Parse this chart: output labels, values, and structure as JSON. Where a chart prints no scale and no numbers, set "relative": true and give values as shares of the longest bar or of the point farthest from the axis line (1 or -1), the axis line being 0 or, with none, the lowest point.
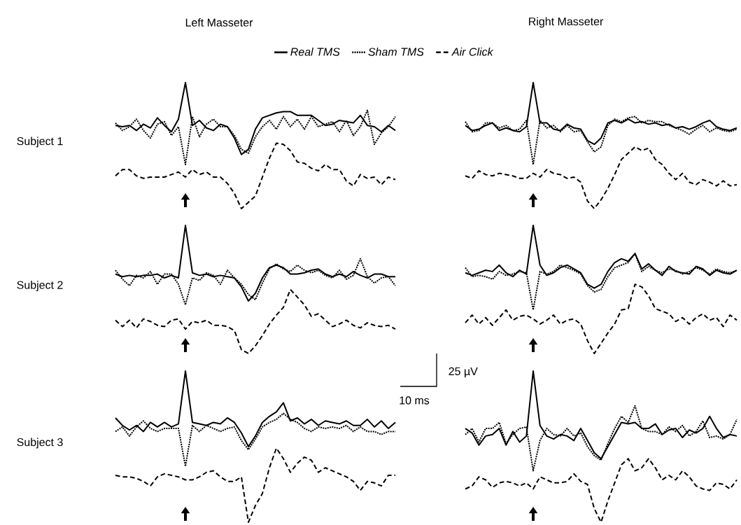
{
  "chart_data": [
    {
      "type": "line",
      "title": "Left Masseter",
      "ylabel": "Subject 1",
      "relative": true,
      "legend": "top",
      "categories": [
        null,
        null,
        null,
        null,
        null,
        null,
        null,
        null,
        null,
        null,
        null,
        null,
        null,
        null,
        null,
        null,
        null,
        null,
        null,
        null,
        null,
        null,
        null,
        null,
        null,
        null,
        null,
        null,
        null,
        null,
        null,
        null,
        null,
        null,
        null,
        null,
        null,
        null,
        null,
        null,
        null
      ],
      "series": [
        {
          "name": "Real TMS",
          "color": "#000000",
          "line_style": "solid",
          "values": [
            0.66,
            0.65,
            0.66,
            0.62,
            0.67,
            0.64,
            0.72,
            0.66,
            0.61,
            0.71,
            1.0,
            0.66,
            0.7,
            0.64,
            0.62,
            0.67,
            0.65,
            0.56,
            0.43,
            0.47,
            0.63,
            0.72,
            0.74,
            0.76,
            0.77,
            0.77,
            0.74,
            0.74,
            0.74,
            0.7,
            0.66,
            0.67,
            0.7,
            0.69,
            0.68,
            0.74,
            0.66,
            0.65,
            0.61,
            0.66,
            0.62
          ]
        },
        {
          "name": "Sham TMS",
          "color": "#000000",
          "line_style": "dotted",
          "values": [
            0.68,
            0.62,
            0.65,
            0.71,
            0.62,
            0.56,
            0.67,
            0.69,
            0.58,
            0.65,
            0.35,
            0.73,
            0.57,
            0.67,
            0.71,
            0.65,
            0.65,
            0.58,
            0.47,
            0.44,
            0.57,
            0.65,
            0.7,
            0.63,
            0.73,
            0.65,
            0.71,
            0.63,
            0.73,
            0.65,
            0.67,
            0.69,
            0.61,
            0.7,
            0.58,
            0.65,
            0.78,
            0.51,
            0.6,
            0.65,
            0.73
          ]
        },
        {
          "name": "Air Click",
          "color": "#000000",
          "line_style": "dashed",
          "values": [
            0.26,
            0.31,
            0.31,
            0.26,
            0.24,
            0.25,
            0.25,
            0.25,
            0.27,
            0.29,
            0.25,
            0.31,
            0.27,
            0.29,
            0.25,
            0.25,
            0.2,
            0.12,
            0.0,
            0.05,
            0.1,
            0.25,
            0.4,
            0.52,
            0.51,
            0.46,
            0.37,
            0.36,
            0.32,
            0.3,
            0.35,
            0.31,
            0.31,
            0.22,
            0.18,
            0.27,
            0.24,
            0.25,
            0.19,
            0.25,
            0.23
          ]
        }
      ]
    },
    {
      "type": "line",
      "title": "Right Masseter",
      "relative": true,
      "categories": [
        null,
        null,
        null,
        null,
        null,
        null,
        null,
        null,
        null,
        null,
        null,
        null,
        null,
        null,
        null,
        null,
        null,
        null,
        null,
        null,
        null,
        null,
        null,
        null,
        null,
        null,
        null,
        null,
        null,
        null,
        null,
        null,
        null,
        null,
        null,
        null,
        null,
        null,
        null,
        null,
        null
      ],
      "series": [
        {
          "color": "#000000",
          "line_style": "solid",
          "values": [
            0.66,
            0.62,
            0.63,
            0.66,
            0.68,
            0.62,
            0.64,
            0.62,
            0.61,
            0.65,
            1.0,
            0.68,
            0.68,
            0.63,
            0.62,
            0.67,
            0.64,
            0.63,
            0.54,
            0.51,
            0.56,
            0.68,
            0.7,
            0.68,
            0.71,
            0.68,
            0.69,
            0.67,
            0.68,
            0.66,
            0.67,
            0.64,
            0.65,
            0.63,
            0.65,
            0.68,
            0.7,
            0.65,
            0.63,
            0.62,
            0.64
          ]
        },
        {
          "color": "#000000",
          "line_style": "dotted",
          "values": [
            0.69,
            0.61,
            0.62,
            0.68,
            0.68,
            0.64,
            0.66,
            0.62,
            0.63,
            0.7,
            0.35,
            0.7,
            0.64,
            0.66,
            0.61,
            0.66,
            0.61,
            0.62,
            0.53,
            0.45,
            0.49,
            0.66,
            0.71,
            0.69,
            0.72,
            0.73,
            0.68,
            0.7,
            0.69,
            0.69,
            0.66,
            0.64,
            0.62,
            0.59,
            0.63,
            0.66,
            0.61,
            0.64,
            0.62,
            0.61,
            0.63
          ]
        },
        {
          "color": "#000000",
          "line_style": "dashed",
          "values": [
            0.26,
            0.24,
            0.3,
            0.27,
            0.26,
            0.28,
            0.27,
            0.26,
            0.24,
            0.24,
            0.28,
            0.25,
            0.31,
            0.28,
            0.27,
            0.24,
            0.25,
            0.21,
            0.06,
            0.0,
            0.07,
            0.16,
            0.27,
            0.39,
            0.44,
            0.49,
            0.46,
            0.48,
            0.39,
            0.35,
            0.28,
            0.23,
            0.28,
            0.21,
            0.19,
            0.23,
            0.21,
            0.18,
            0.22,
            0.18,
            0.19
          ]
        }
      ]
    },
    {
      "type": "line",
      "ylabel": "Subject 2",
      "relative": true,
      "categories": [
        null,
        null,
        null,
        null,
        null,
        null,
        null,
        null,
        null,
        null,
        null,
        null,
        null,
        null,
        null,
        null,
        null,
        null,
        null,
        null,
        null,
        null,
        null,
        null,
        null,
        null,
        null,
        null,
        null,
        null,
        null,
        null,
        null,
        null,
        null,
        null,
        null,
        null,
        null,
        null,
        null
      ],
      "series": [
        {
          "color": "#000000",
          "line_style": "solid",
          "values": [
            0.62,
            0.6,
            0.61,
            0.6,
            0.61,
            0.61,
            0.62,
            0.59,
            0.61,
            0.59,
            1.0,
            0.63,
            0.61,
            0.62,
            0.6,
            0.61,
            0.6,
            0.59,
            0.52,
            0.41,
            0.47,
            0.59,
            0.67,
            0.69,
            0.67,
            0.62,
            0.62,
            0.63,
            0.65,
            0.66,
            0.62,
            0.6,
            0.62,
            0.6,
            0.64,
            0.61,
            0.59,
            0.62,
            0.62,
            0.6,
            0.6
          ]
        },
        {
          "color": "#000000",
          "line_style": "dotted",
          "values": [
            0.65,
            0.58,
            0.53,
            0.61,
            0.59,
            0.64,
            0.54,
            0.62,
            0.62,
            0.54,
            0.38,
            0.59,
            0.57,
            0.63,
            0.61,
            0.54,
            0.65,
            0.59,
            0.54,
            0.46,
            0.42,
            0.55,
            0.66,
            0.7,
            0.66,
            0.64,
            0.69,
            0.65,
            0.63,
            0.65,
            0.61,
            0.59,
            0.65,
            0.58,
            0.61,
            0.74,
            0.6,
            0.55,
            0.59,
            0.6,
            0.53
          ]
        },
        {
          "color": "#000000",
          "line_style": "dashed",
          "values": [
            0.26,
            0.21,
            0.26,
            0.2,
            0.27,
            0.25,
            0.22,
            0.21,
            0.26,
            0.27,
            0.19,
            0.25,
            0.24,
            0.26,
            0.22,
            0.22,
            0.21,
            0.18,
            0.03,
            0.0,
            0.06,
            0.14,
            0.23,
            0.3,
            0.36,
            0.5,
            0.44,
            0.38,
            0.29,
            0.31,
            0.26,
            0.21,
            0.23,
            0.26,
            0.22,
            0.2,
            0.24,
            0.22,
            0.21,
            0.22,
            0.19
          ]
        }
      ]
    },
    {
      "type": "line",
      "relative": true,
      "categories": [
        null,
        null,
        null,
        null,
        null,
        null,
        null,
        null,
        null,
        null,
        null,
        null,
        null,
        null,
        null,
        null,
        null,
        null,
        null,
        null,
        null,
        null,
        null,
        null,
        null,
        null,
        null,
        null,
        null,
        null,
        null,
        null,
        null,
        null,
        null,
        null,
        null,
        null,
        null,
        null,
        null
      ],
      "series": [
        {
          "color": "#000000",
          "line_style": "solid",
          "values": [
            0.63,
            0.61,
            0.63,
            0.65,
            0.64,
            0.69,
            0.63,
            0.6,
            0.65,
            0.62,
            1.0,
            0.69,
            0.61,
            0.63,
            0.67,
            0.69,
            0.66,
            0.63,
            0.54,
            0.51,
            0.54,
            0.64,
            0.71,
            0.74,
            0.72,
            0.78,
            0.66,
            0.7,
            0.65,
            0.61,
            0.68,
            0.64,
            0.63,
            0.62,
            0.68,
            0.66,
            0.61,
            0.65,
            0.63,
            0.62,
            0.65
          ]
        },
        {
          "color": "#000000",
          "line_style": "dotted",
          "values": [
            0.67,
            0.6,
            0.61,
            0.6,
            0.58,
            0.64,
            0.61,
            0.62,
            0.64,
            0.63,
            0.34,
            0.64,
            0.62,
            0.64,
            0.69,
            0.67,
            0.65,
            0.62,
            0.53,
            0.48,
            0.5,
            0.6,
            0.67,
            0.69,
            0.71,
            0.78,
            0.64,
            0.68,
            0.65,
            0.63,
            0.66,
            0.65,
            0.62,
            0.64,
            0.67,
            0.65,
            0.62,
            0.66,
            0.64,
            0.63,
            0.65
          ]
        },
        {
          "color": "#000000",
          "line_style": "dashed",
          "values": [
            0.24,
            0.3,
            0.23,
            0.28,
            0.22,
            0.28,
            0.34,
            0.26,
            0.29,
            0.3,
            0.27,
            0.23,
            0.26,
            0.3,
            0.23,
            0.26,
            0.27,
            0.23,
            0.1,
            0.0,
            0.08,
            0.16,
            0.23,
            0.34,
            0.35,
            0.54,
            0.52,
            0.45,
            0.35,
            0.33,
            0.31,
            0.25,
            0.28,
            0.23,
            0.28,
            0.31,
            0.26,
            0.28,
            0.21,
            0.3,
            0.26
          ]
        }
      ]
    },
    {
      "type": "line",
      "ylabel": "Subject 3",
      "relative": true,
      "annotations": [
        "25 µV",
        "10 ms"
      ],
      "categories": [
        null,
        null,
        null,
        null,
        null,
        null,
        null,
        null,
        null,
        null,
        null,
        null,
        null,
        null,
        null,
        null,
        null,
        null,
        null,
        null,
        null,
        null,
        null,
        null,
        null,
        null,
        null,
        null,
        null,
        null,
        null,
        null,
        null,
        null,
        null,
        null,
        null,
        null,
        null,
        null,
        null
      ],
      "series": [
        {
          "color": "#000000",
          "line_style": "solid",
          "values": [
            0.69,
            0.64,
            0.61,
            0.64,
            0.6,
            0.66,
            0.63,
            0.66,
            0.63,
            0.65,
            1.0,
            0.66,
            0.65,
            0.64,
            0.66,
            0.65,
            0.69,
            0.66,
            0.59,
            0.5,
            0.57,
            0.66,
            0.7,
            0.73,
            0.79,
            0.67,
            0.69,
            0.65,
            0.68,
            0.64,
            0.67,
            0.66,
            0.65,
            0.67,
            0.64,
            0.64,
            0.68,
            0.63,
            0.67,
            0.62,
            0.66
          ]
        },
        {
          "color": "#000000",
          "line_style": "dotted",
          "values": [
            0.6,
            0.63,
            0.57,
            0.63,
            0.67,
            0.62,
            0.6,
            0.62,
            0.62,
            0.62,
            0.37,
            0.64,
            0.6,
            0.64,
            0.62,
            0.6,
            0.62,
            0.63,
            0.54,
            0.48,
            0.55,
            0.63,
            0.66,
            0.68,
            0.72,
            0.68,
            0.66,
            0.62,
            0.6,
            0.63,
            0.62,
            0.63,
            0.62,
            0.64,
            0.6,
            0.63,
            0.6,
            0.6,
            0.58,
            0.6,
            0.6
          ]
        },
        {
          "color": "#000000",
          "line_style": "dashed",
          "values": [
            0.31,
            0.3,
            0.3,
            0.29,
            0.27,
            0.24,
            0.3,
            0.32,
            0.31,
            0.3,
            0.28,
            0.28,
            0.3,
            0.33,
            0.34,
            0.3,
            0.27,
            0.27,
            0.3,
            0.0,
            0.11,
            0.19,
            0.36,
            0.49,
            0.42,
            0.33,
            0.39,
            0.43,
            0.41,
            0.33,
            0.36,
            0.34,
            0.32,
            0.3,
            0.27,
            0.21,
            0.27,
            0.26,
            0.24,
            0.31,
            0.31
          ]
        }
      ]
    },
    {
      "type": "line",
      "relative": true,
      "categories": [
        null,
        null,
        null,
        null,
        null,
        null,
        null,
        null,
        null,
        null,
        null,
        null,
        null,
        null,
        null,
        null,
        null,
        null,
        null,
        null,
        null,
        null,
        null,
        null,
        null,
        null,
        null,
        null,
        null,
        null,
        null,
        null,
        null,
        null,
        null,
        null,
        null,
        null,
        null,
        null,
        null
      ],
      "series": [
        {
          "color": "#000000",
          "line_style": "solid",
          "values": [
            0.62,
            0.59,
            0.51,
            0.57,
            0.58,
            0.62,
            0.51,
            0.6,
            0.53,
            0.57,
            1.0,
            0.64,
            0.57,
            0.55,
            0.58,
            0.57,
            0.54,
            0.62,
            0.54,
            0.46,
            0.42,
            0.5,
            0.58,
            0.66,
            0.65,
            0.66,
            0.62,
            0.62,
            0.65,
            0.58,
            0.61,
            0.62,
            0.56,
            0.61,
            0.59,
            0.62,
            0.7,
            0.62,
            0.56,
            0.58,
            0.57
          ]
        },
        {
          "color": "#000000",
          "line_style": "dotted",
          "values": [
            0.58,
            0.62,
            0.53,
            0.62,
            0.62,
            0.66,
            0.52,
            0.58,
            0.62,
            0.63,
            0.34,
            0.54,
            0.62,
            0.58,
            0.57,
            0.62,
            0.57,
            0.59,
            0.5,
            0.44,
            0.41,
            0.52,
            0.62,
            0.7,
            0.66,
            0.77,
            0.62,
            0.6,
            0.6,
            0.58,
            0.63,
            0.6,
            0.64,
            0.57,
            0.6,
            0.67,
            0.56,
            0.57,
            0.55,
            0.58,
            0.68
          ]
        },
        {
          "color": "#000000",
          "line_style": "dashed",
          "values": [
            0.22,
            0.24,
            0.3,
            0.28,
            0.23,
            0.26,
            0.27,
            0.26,
            0.24,
            0.26,
            0.22,
            0.3,
            0.28,
            0.26,
            0.26,
            0.27,
            0.32,
            0.27,
            0.25,
            0.09,
            0.0,
            0.14,
            0.26,
            0.38,
            0.42,
            0.34,
            0.36,
            0.42,
            0.36,
            0.28,
            0.31,
            0.28,
            0.34,
            0.3,
            0.24,
            0.22,
            0.21,
            0.26,
            0.25,
            0.22,
            0.28
          ]
        }
      ]
    }
  ]
}
